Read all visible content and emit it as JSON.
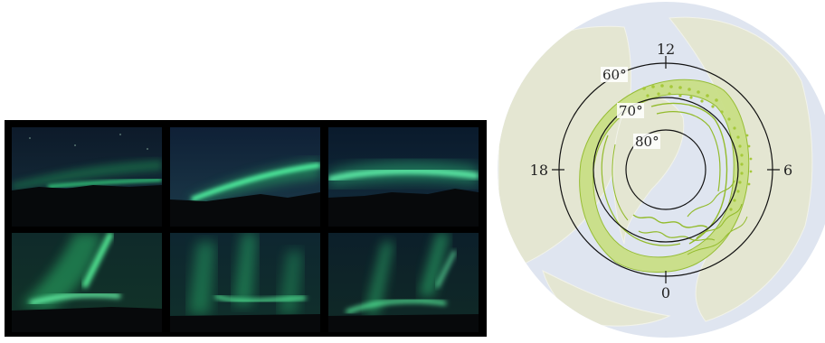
{
  "photos": [
    {
      "id": 1,
      "description_name": "aurora-arc-low-horizon"
    },
    {
      "id": 2,
      "description_name": "aurora-arc-rising"
    },
    {
      "id": 3,
      "description_name": "aurora-arc-bright-band"
    },
    {
      "id": 4,
      "description_name": "aurora-corona-curtains"
    },
    {
      "id": 5,
      "description_name": "aurora-vertical-rays"
    },
    {
      "id": 6,
      "description_name": "aurora-rayed-bands"
    }
  ],
  "polar_map": {
    "latitude_labels": [
      "60°",
      "70°",
      "80°"
    ],
    "mlt_labels": {
      "top": "12",
      "left": "18",
      "right": "6",
      "bottom": "0"
    },
    "colors": {
      "ocean": "#dfe5f0",
      "land": "#e4e6d2",
      "oval_fill": "#c9df86",
      "oval_line": "#93bb2c",
      "ring": "#111111"
    }
  }
}
